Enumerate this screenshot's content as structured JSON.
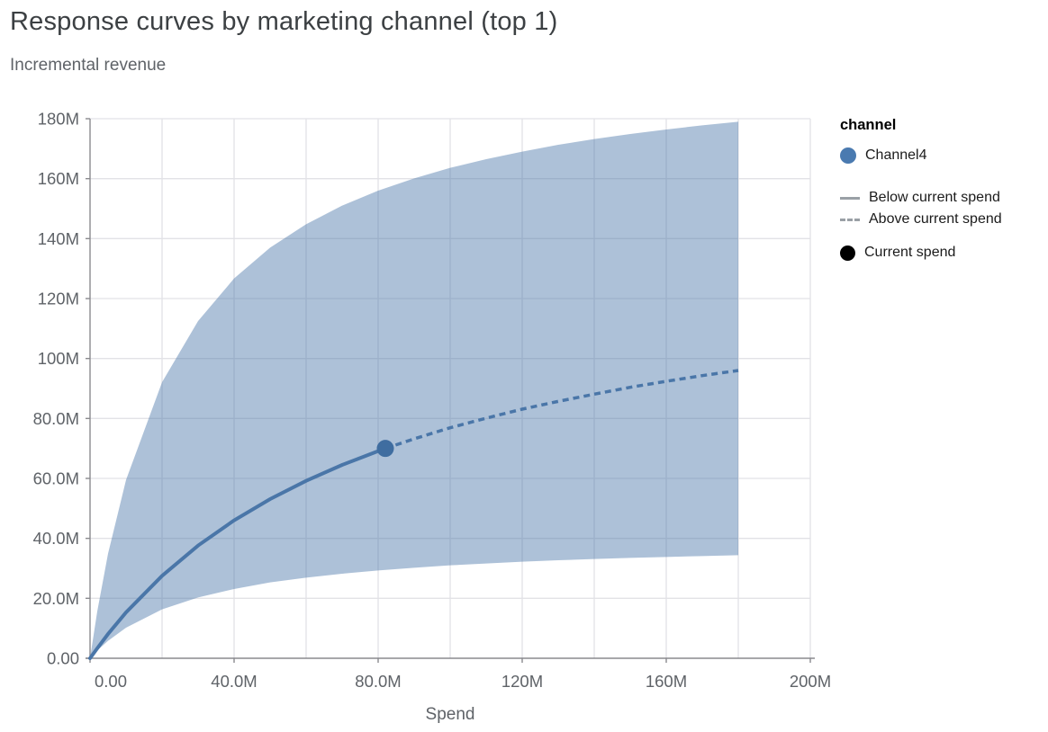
{
  "header": {
    "title": "Response curves by marketing channel (top 1)",
    "subtitle": "Incremental revenue"
  },
  "legend": {
    "group_title": "channel",
    "channel_item": {
      "label": "Channel4",
      "color": "#4a7ab0"
    },
    "below_item": {
      "label": "Below current spend",
      "style": "solid",
      "color": "#9aa0a6"
    },
    "above_item": {
      "label": "Above current spend",
      "style": "dashed",
      "color": "#9aa0a6"
    },
    "current_item": {
      "label": "Current spend",
      "color": "#000000"
    }
  },
  "chart_data": {
    "type": "area",
    "title": "Response curves by marketing channel (top 1)",
    "subtitle": "Incremental revenue",
    "xlabel": "Spend",
    "ylabel": "Incremental revenue",
    "units": "millions",
    "xlim": [
      0,
      200
    ],
    "ylim": [
      0,
      180
    ],
    "grid": true,
    "grid_step_M": 20,
    "legend_position": "right",
    "x_ticks": [
      {
        "value": 0,
        "label": "0.00"
      },
      {
        "value": 40,
        "label": "40.0M"
      },
      {
        "value": 80,
        "label": "80.0M"
      },
      {
        "value": 120,
        "label": "120M"
      },
      {
        "value": 160,
        "label": "160M"
      },
      {
        "value": 200,
        "label": "200M"
      }
    ],
    "y_ticks": [
      {
        "value": 0,
        "label": "0.00"
      },
      {
        "value": 20,
        "label": "20.0M"
      },
      {
        "value": 40,
        "label": "40.0M"
      },
      {
        "value": 60,
        "label": "60.0M"
      },
      {
        "value": 80,
        "label": "80.0M"
      },
      {
        "value": 100,
        "label": "100M"
      },
      {
        "value": 120,
        "label": "120M"
      },
      {
        "value": 140,
        "label": "140M"
      },
      {
        "value": 160,
        "label": "160M"
      },
      {
        "value": 180,
        "label": "180M"
      }
    ],
    "series": {
      "channel": "Channel4",
      "spend_M": [
        0,
        2,
        5,
        10,
        20,
        30,
        40,
        50,
        60,
        70,
        80,
        90,
        100,
        110,
        120,
        130,
        140,
        150,
        160,
        170,
        180
      ],
      "mid_M": [
        0,
        3.3,
        8.1,
        15.3,
        27.5,
        37.6,
        46.0,
        53.1,
        59.2,
        64.5,
        69.1,
        73.2,
        76.9,
        80.1,
        83.1,
        85.7,
        88.1,
        90.4,
        92.4,
        94.3,
        96.0
      ],
      "upper_M": [
        0,
        15.6,
        34.9,
        59.5,
        92.1,
        112.5,
        126.7,
        137.0,
        144.8,
        151.0,
        156.0,
        160.1,
        163.6,
        166.5,
        169.0,
        171.3,
        173.2,
        174.9,
        176.4,
        177.8,
        179.0
      ],
      "lower_M": [
        0,
        2.6,
        5.8,
        10.2,
        16.3,
        20.3,
        23.1,
        25.3,
        26.9,
        28.2,
        29.3,
        30.2,
        31.0,
        31.6,
        32.2,
        32.7,
        33.1,
        33.5,
        33.8,
        34.1,
        34.4
      ],
      "current_spend_M": 82,
      "current_revenue_M": 70
    },
    "colors": {
      "line": "#4a76a8",
      "dot": "#3f6da0",
      "band": "rgba(74,118,168,0.45)",
      "gridline": "#e2e2e6",
      "axis": "#8a8a8e",
      "tick_text": "#5f6368"
    }
  }
}
